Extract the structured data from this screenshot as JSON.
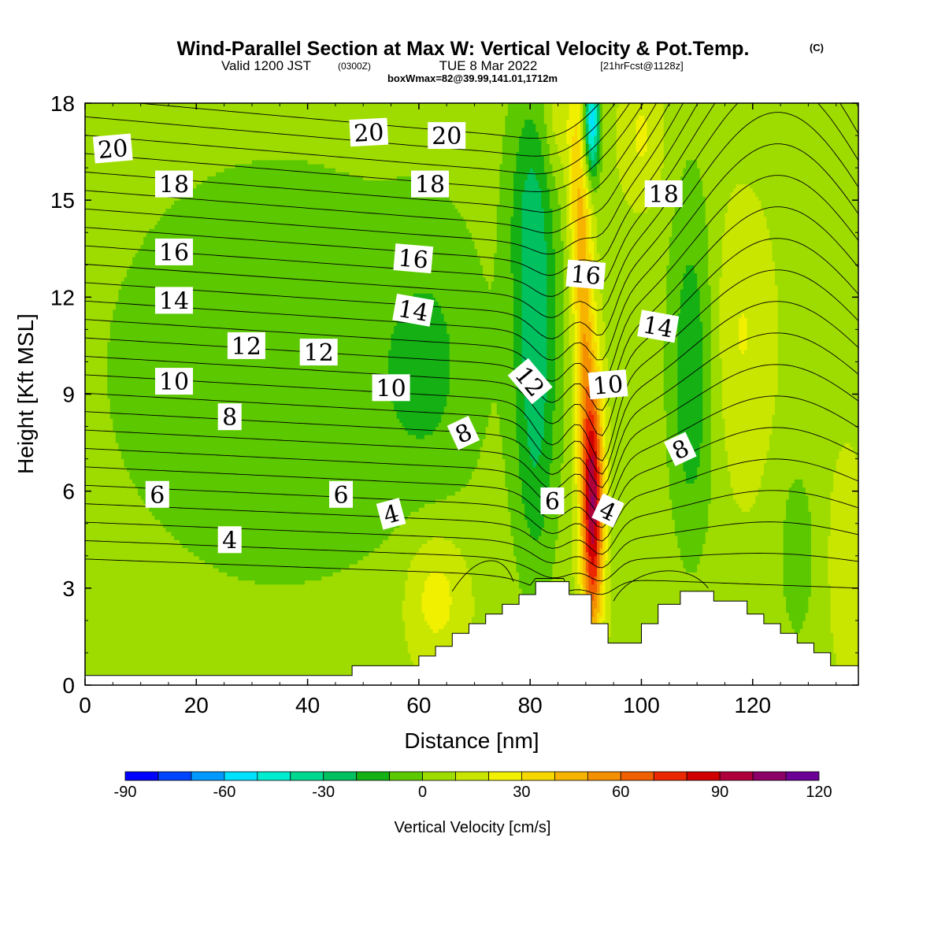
{
  "header": {
    "title": "Wind-Parallel Section at Max W: Vertical Velocity & Pot.Temp.",
    "copyright": "(C)",
    "valid_prefix": "Valid 1200 JST",
    "valid_utc": "(0300Z)",
    "valid_date": "TUE 8 Mar 2022",
    "forecast_info": "[21hrFcst@1128z]",
    "box_info": "boxWmax=82@39.99,141.01,1712m"
  },
  "chart_data": {
    "type": "heatmap",
    "xlabel": "Distance [nm]",
    "ylabel": "Height [Kft MSL]",
    "xlim": [
      0,
      139
    ],
    "ylim": [
      0,
      18
    ],
    "x_ticks": [
      "0",
      "20",
      "40",
      "60",
      "80",
      "100",
      "120"
    ],
    "y_ticks": [
      "0",
      "3",
      "6",
      "9",
      "12",
      "15",
      "18"
    ],
    "colorbar": {
      "label": "Vertical Velocity [cm/s]",
      "min": -90,
      "max": 120,
      "step": 10,
      "tick_labels": [
        "-90",
        "-60",
        "-30",
        "0",
        "30",
        "60",
        "90",
        "120"
      ],
      "colors": [
        "#0000ff",
        "#0044ff",
        "#0099ff",
        "#00e0ff",
        "#00ecd0",
        "#00d890",
        "#00c060",
        "#14b014",
        "#5cc800",
        "#9edc00",
        "#c8e600",
        "#f0f000",
        "#f6d800",
        "#f6b400",
        "#f49000",
        "#f06000",
        "#ec2800",
        "#d00000",
        "#b0003c",
        "#8c0068",
        "#6c0094"
      ]
    },
    "contours_theta": {
      "variable": "Pot.Temp.",
      "labels": [
        "4",
        "6",
        "8",
        "10",
        "12",
        "14",
        "16",
        "18",
        "20"
      ]
    },
    "updraft_max": {
      "value_cm_s": 82,
      "distance_nm": 91,
      "height_kft": 6
    }
  }
}
